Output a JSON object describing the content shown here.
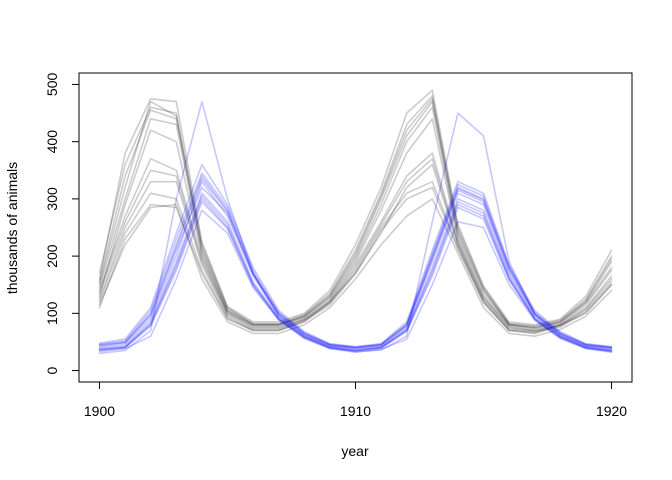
{
  "chart_data": {
    "type": "line",
    "title": "",
    "xlabel": "year",
    "ylabel": "thousands of animals",
    "xlim": [
      1899.2,
      1920.8
    ],
    "ylim": [
      -20,
      520
    ],
    "x_ticks": [
      1900,
      1910,
      1920
    ],
    "y_ticks": [
      0,
      100,
      200,
      300,
      400,
      500
    ],
    "grid": false,
    "legend": "none",
    "x": [
      1900,
      1901,
      1902,
      1903,
      1904,
      1905,
      1906,
      1907,
      1908,
      1909,
      1910,
      1911,
      1912,
      1913,
      1914,
      1915,
      1916,
      1917,
      1918,
      1919,
      1920
    ],
    "colors": {
      "group_a": "#000000",
      "group_b": "#0000ff"
    },
    "series_groups": [
      {
        "color_key": "group_a",
        "opacity": 0.2,
        "series": [
          {
            "values": [
              150,
              320,
              470,
              445,
              210,
              105,
              80,
              80,
              95,
              130,
              200,
              300,
              410,
              470,
              240,
              140,
              80,
              75,
              85,
              120,
              190
            ]
          },
          {
            "values": [
              110,
              230,
              290,
              285,
              170,
              90,
              70,
              70,
              85,
              120,
              170,
              240,
              320,
              360,
              220,
              120,
              70,
              65,
              80,
              100,
              150
            ]
          },
          {
            "values": [
              130,
              290,
              420,
              400,
              200,
              100,
              78,
              78,
              92,
              125,
              190,
              280,
              380,
              440,
              230,
              130,
              78,
              72,
              82,
              115,
              175
            ]
          },
          {
            "values": [
              170,
              360,
              460,
              450,
              220,
              110,
              82,
              82,
              98,
              135,
              210,
              310,
              430,
              480,
              250,
              145,
              82,
              78,
              88,
              125,
              200
            ]
          },
          {
            "values": [
              140,
              270,
              370,
              350,
              195,
              102,
              76,
              76,
              90,
              122,
              185,
              260,
              340,
              380,
              225,
              128,
              76,
              70,
              80,
              110,
              165
            ]
          },
          {
            "values": [
              125,
              250,
              330,
              330,
              185,
              95,
              72,
              72,
              88,
              118,
              175,
              250,
              310,
              330,
              215,
              122,
              72,
              68,
              78,
              105,
              155
            ]
          },
          {
            "values": [
              160,
              380,
              475,
              470,
              225,
              112,
              85,
              85,
              100,
              140,
              220,
              320,
              450,
              490,
              255,
              148,
              85,
              80,
              90,
              130,
              210
            ]
          },
          {
            "values": [
              115,
              220,
              285,
              290,
              160,
              85,
              65,
              65,
              80,
              110,
              160,
              220,
              270,
              300,
              205,
              110,
              65,
              60,
              72,
              95,
              140
            ]
          },
          {
            "values": [
              145,
              300,
              440,
              430,
              205,
              104,
              80,
              80,
              94,
              128,
              195,
              290,
              400,
              460,
              235,
              135,
              80,
              74,
              84,
              118,
              180
            ]
          },
          {
            "values": [
              135,
              260,
              350,
              340,
              190,
              98,
              74,
              74,
              89,
              120,
              180,
              255,
              330,
              370,
              222,
              125,
              74,
              69,
              79,
              108,
              160
            ]
          },
          {
            "values": [
              120,
              240,
              310,
              300,
              175,
              92,
              70,
              70,
              86,
              115,
              170,
              245,
              300,
              320,
              212,
              118,
              70,
              66,
              76,
              102,
              150
            ]
          },
          {
            "values": [
              155,
              340,
              455,
              440,
              215,
              108,
              81,
              81,
              96,
              132,
              205,
              305,
              420,
              475,
              245,
              142,
              81,
              76,
              86,
              122,
              195
            ]
          }
        ]
      },
      {
        "color_key": "group_b",
        "opacity": 0.22,
        "series": [
          {
            "values": [
              45,
              50,
              100,
              220,
              340,
              280,
              170,
              100,
              65,
              45,
              40,
              45,
              80,
              200,
              320,
              300,
              180,
              100,
              65,
              45,
              40
            ]
          },
          {
            "values": [
              35,
              40,
              80,
              180,
              300,
              250,
              150,
              90,
              58,
              40,
              35,
              40,
              70,
              170,
              290,
              270,
              160,
              90,
              58,
              40,
              35
            ]
          },
          {
            "values": [
              40,
              45,
              90,
              200,
              330,
              270,
              165,
              95,
              62,
              43,
              38,
              42,
              75,
              190,
              310,
              290,
              170,
              95,
              62,
              43,
              38
            ]
          },
          {
            "values": [
              30,
              35,
              70,
              300,
              470,
              300,
              170,
              95,
              60,
              40,
              33,
              36,
              60,
              260,
              450,
              410,
              190,
              98,
              60,
              40,
              33
            ]
          },
          {
            "values": [
              48,
              55,
              110,
              240,
              360,
              290,
              180,
              105,
              68,
              47,
              42,
              47,
              85,
              210,
              330,
              310,
              185,
              105,
              68,
              47,
              42
            ]
          },
          {
            "values": [
              38,
              42,
              85,
              190,
              310,
              260,
              155,
              92,
              60,
              42,
              36,
              41,
              72,
              180,
              300,
              280,
              165,
              92,
              60,
              42,
              36
            ]
          },
          {
            "values": [
              42,
              48,
              95,
              210,
              320,
              275,
              168,
              98,
              63,
              44,
              39,
              44,
              78,
              195,
              315,
              295,
              175,
              98,
              63,
              44,
              39
            ]
          },
          {
            "values": [
              33,
              38,
              60,
              160,
              280,
              240,
              145,
              88,
              56,
              38,
              32,
              37,
              55,
              150,
              260,
              250,
              150,
              88,
              56,
              38,
              32
            ]
          },
          {
            "values": [
              46,
              52,
              105,
              230,
              345,
              285,
              175,
              102,
              66,
              46,
              41,
              46,
              82,
              205,
              325,
              305,
              182,
              102,
              66,
              46,
              41
            ]
          },
          {
            "values": [
              37,
              41,
              82,
              185,
              305,
              255,
              152,
              91,
              59,
              41,
              35,
              40,
              71,
              175,
              295,
              275,
              162,
              91,
              59,
              41,
              35
            ]
          },
          {
            "values": [
              44,
              49,
              98,
              215,
              335,
              278,
              170,
              99,
              64,
              45,
              40,
              45,
              79,
              198,
              318,
              298,
              178,
              99,
              64,
              45,
              40
            ]
          },
          {
            "values": [
              36,
              40,
              78,
              175,
              295,
              248,
              148,
              89,
              57,
              39,
              34,
              39,
              68,
              165,
              285,
              265,
              158,
              89,
              57,
              39,
              34
            ]
          }
        ]
      }
    ]
  }
}
